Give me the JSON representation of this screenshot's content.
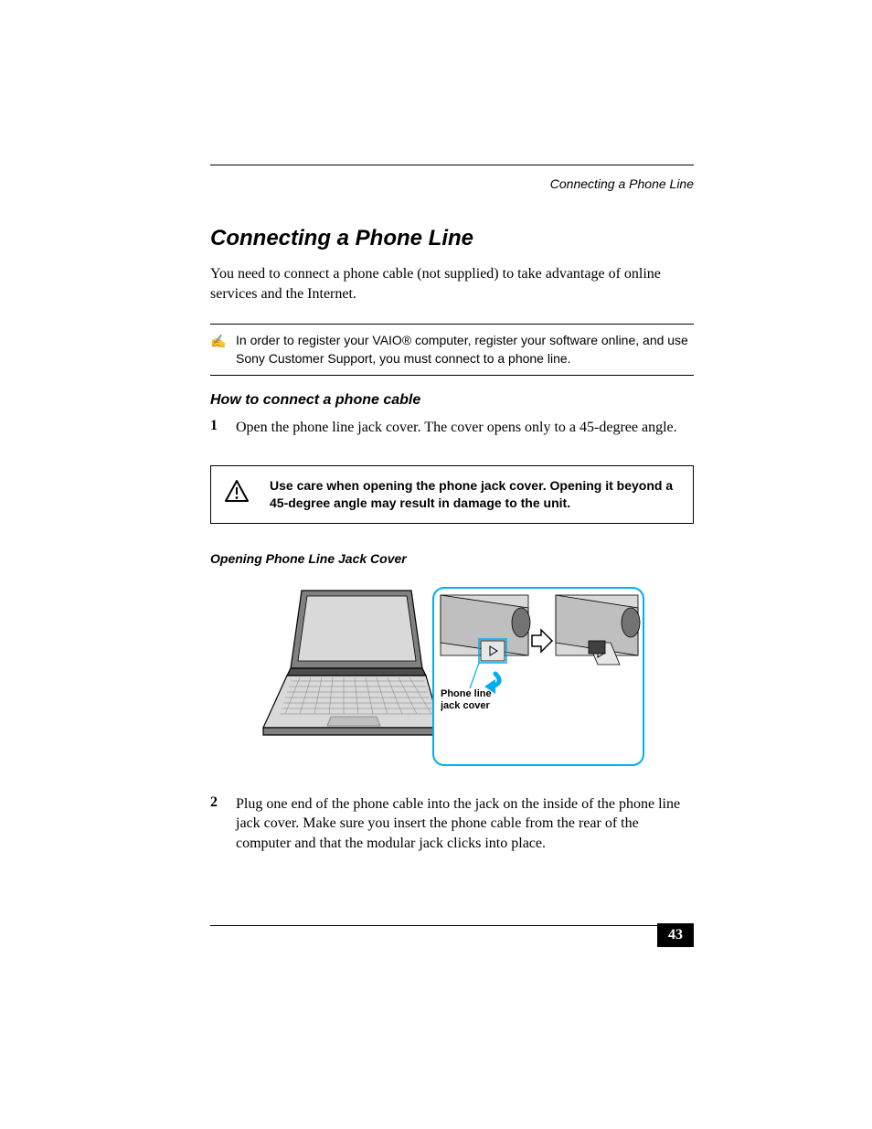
{
  "colors": {
    "accent": "#00aeef",
    "text": "#000000",
    "bg": "#ffffff",
    "figure_gray": "#808080",
    "figure_light": "#d9d9d9",
    "figure_dark": "#4d4d4d"
  },
  "header": {
    "running": "Connecting a Phone Line"
  },
  "title": "Connecting a Phone Line",
  "intro": "You need to connect a phone cable (not supplied) to take advantage of online services and the Internet.",
  "note": {
    "icon": "✍",
    "text": "In order to register your VAIO® computer, register your software online, and use Sony Customer Support, you must connect to a phone line."
  },
  "subhead": "How to connect a phone cable",
  "steps": [
    {
      "num": "1",
      "text": "Open the phone line jack cover. The cover opens only to a 45-degree angle."
    },
    {
      "num": "2",
      "text": "Plug one end of the phone cable into the jack on the inside of the phone line jack cover. Make sure you insert the phone cable from the rear of the computer and that the modular jack clicks into place."
    }
  ],
  "caution": {
    "text": "Use care when opening the phone jack cover. Opening it beyond a 45-degree angle may result in damage to the unit."
  },
  "figure": {
    "caption": "Opening Phone Line Jack Cover",
    "callout": "Phone line\njack cover"
  },
  "page_number": "43"
}
